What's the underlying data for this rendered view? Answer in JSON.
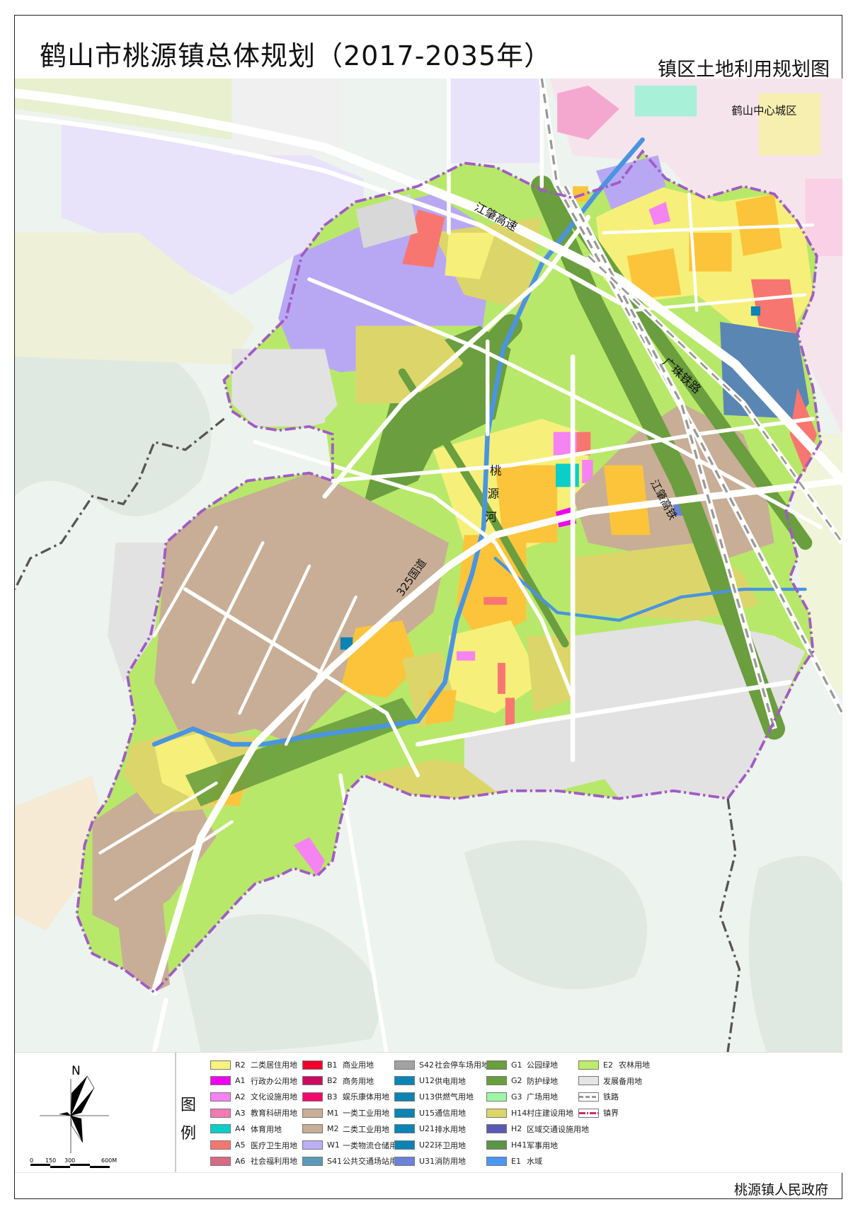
{
  "header": {
    "title": "鹤山市桃源镇总体规划（2017-2035年）",
    "subtitle": "镇区土地利用规划图"
  },
  "map": {
    "labels": {
      "city_center": "鹤山中心城区",
      "expressway": "江肇高速",
      "railway": "广珠铁路",
      "river_1": "桃",
      "river_2": "源",
      "river_3": "河",
      "national_road": "325国道",
      "high_speed_rail": "江肇高铁"
    },
    "colors": {
      "boundary": "#a05cc4",
      "farmland": "#b8e86a",
      "green": "#6a9e3e",
      "industrial": "#c8ae96",
      "logistics": "#b8a8f4",
      "residential": "#f6f07a",
      "residential_orange": "#fcc43a",
      "village": "#dcd66a",
      "reserve": "#e2e2e2",
      "water": "#4a94e0",
      "military_block": "#5a86b4"
    }
  },
  "compass": {
    "north": "N",
    "scale_ticks": [
      "0",
      "150",
      "300",
      "600M"
    ]
  },
  "legend": {
    "heading_1": "图",
    "heading_2": "例",
    "items": [
      {
        "code": "R2",
        "label": "二类居住用地",
        "color": "#f6f47e"
      },
      {
        "code": "A1",
        "label": "行政办公用地",
        "color": "#f000f0"
      },
      {
        "code": "A2",
        "label": "文化设施用地",
        "color": "#f683f2"
      },
      {
        "code": "A3",
        "label": "教育科研用地",
        "color": "#f47ab4"
      },
      {
        "code": "A4",
        "label": "体育用地",
        "color": "#0acfc6"
      },
      {
        "code": "A5",
        "label": "医疗卫生用地",
        "color": "#f87670"
      },
      {
        "code": "A6",
        "label": "社会福利用地",
        "color": "#d86a86"
      },
      {
        "code": "B1",
        "label": "商业用地",
        "color": "#f2002c"
      },
      {
        "code": "B2",
        "label": "商务用地",
        "color": "#cc0a5e"
      },
      {
        "code": "B3",
        "label": "娱乐康体用地",
        "color": "#f4086e"
      },
      {
        "code": "M1",
        "label": "一类工业用地",
        "color": "#c8ae96"
      },
      {
        "code": "M2",
        "label": "二类工业用地",
        "color": "#c8ae96"
      },
      {
        "code": "W1",
        "label": "一类物流仓储用地",
        "color": "#bcaef6"
      },
      {
        "code": "S41",
        "label": "公共交通场站用地",
        "color": "#5a9ab6"
      },
      {
        "code": "S42",
        "label": "社会停车场用地",
        "color": "#a2a2a2"
      },
      {
        "code": "U12",
        "label": "供电用地",
        "color": "#0a84b4"
      },
      {
        "code": "U13",
        "label": "供燃气用地",
        "color": "#0a84b4"
      },
      {
        "code": "U15",
        "label": "通信用地",
        "color": "#0a84b4"
      },
      {
        "code": "U21",
        "label": "排水用地",
        "color": "#0a84b4"
      },
      {
        "code": "U22",
        "label": "环卫用地",
        "color": "#0a84b4"
      },
      {
        "code": "U31",
        "label": "消防用地",
        "color": "#6a82d8"
      },
      {
        "code": "G1",
        "label": "公园绿地",
        "color": "#6a9e3e"
      },
      {
        "code": "G2",
        "label": "防护绿地",
        "color": "#6a9e3e"
      },
      {
        "code": "G3",
        "label": "广场用地",
        "color": "#9ef6a4"
      },
      {
        "code": "H14",
        "label": "村庄建设用地",
        "color": "#dcd66a"
      },
      {
        "code": "H2",
        "label": "区域交通设施用地",
        "color": "#5a5ab4"
      },
      {
        "code": "H41",
        "label": "军事用地",
        "color": "#5a9646"
      },
      {
        "code": "E1",
        "label": "水域",
        "color": "#4a96f4"
      },
      {
        "code": "E2",
        "label": "农林用地",
        "color": "#bcec6a"
      },
      {
        "code": "",
        "label": "发展备用地",
        "color": "#e4e4e4"
      },
      {
        "code": "",
        "label": "铁路",
        "color": "#999999",
        "symbol": "railway"
      },
      {
        "code": "",
        "label": "镇界",
        "color": "#c82a6a",
        "symbol": "boundary"
      }
    ]
  },
  "footer": {
    "issuer": "桃源镇人民政府"
  }
}
